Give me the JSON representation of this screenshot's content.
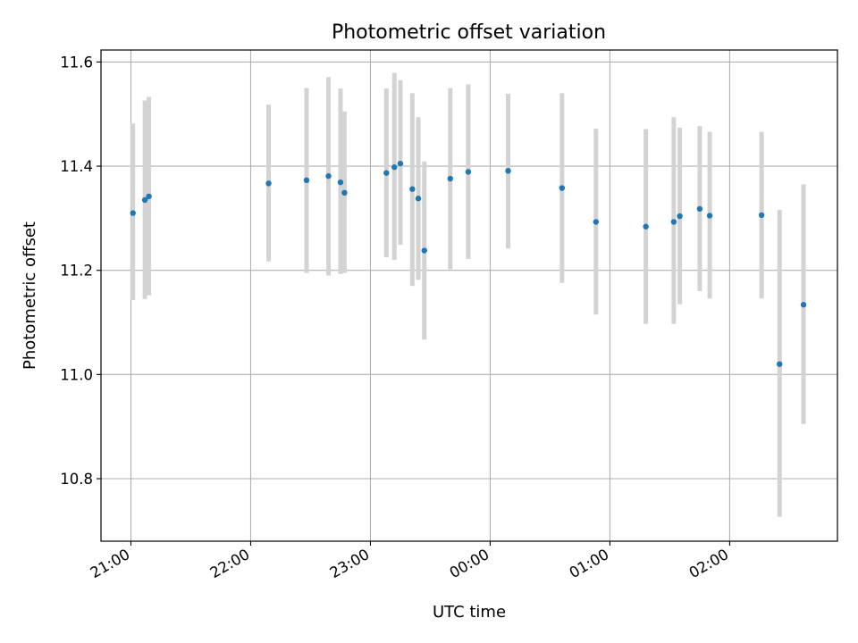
{
  "chart_data": {
    "type": "scatter",
    "title": "Photometric offset variation",
    "xlabel": "UTC time",
    "ylabel": "Photometric offset",
    "x_axis_kind": "time",
    "x_ticks": [
      "21:00",
      "22:00",
      "23:00",
      "00:00",
      "01:00",
      "02:00"
    ],
    "x_range_hours": [
      20.75,
      26.9
    ],
    "y_ticks": [
      10.8,
      11.0,
      11.2,
      11.4,
      11.6
    ],
    "ylim": [
      10.68,
      11.623
    ],
    "grid": true,
    "marker_color": "#1f77b4",
    "errorbar_color": "#d3d3d3",
    "series": [
      {
        "points": [
          {
            "time": "21:01",
            "y": 11.31,
            "low": 11.143,
            "high": 11.482
          },
          {
            "time": "21:07",
            "y": 11.335,
            "low": 11.145,
            "high": 11.526
          },
          {
            "time": "21:09",
            "y": 11.342,
            "low": 11.152,
            "high": 11.533
          },
          {
            "time": "22:09",
            "y": 11.367,
            "low": 11.217,
            "high": 11.518
          },
          {
            "time": "22:28",
            "y": 11.373,
            "low": 11.195,
            "high": 11.55
          },
          {
            "time": "22:39",
            "y": 11.381,
            "low": 11.19,
            "high": 11.571
          },
          {
            "time": "22:45",
            "y": 11.369,
            "low": 11.193,
            "high": 11.549
          },
          {
            "time": "22:47",
            "y": 11.349,
            "low": 11.195,
            "high": 11.505
          },
          {
            "time": "23:08",
            "y": 11.387,
            "low": 11.225,
            "high": 11.549
          },
          {
            "time": "23:12",
            "y": 11.398,
            "low": 11.22,
            "high": 11.579
          },
          {
            "time": "23:15",
            "y": 11.405,
            "low": 11.249,
            "high": 11.565
          },
          {
            "time": "23:21",
            "y": 11.356,
            "low": 11.17,
            "high": 11.54
          },
          {
            "time": "23:24",
            "y": 11.338,
            "low": 11.182,
            "high": 11.494
          },
          {
            "time": "23:27",
            "y": 11.238,
            "low": 11.067,
            "high": 11.409
          },
          {
            "time": "23:40",
            "y": 11.376,
            "low": 11.202,
            "high": 11.55
          },
          {
            "time": "23:49",
            "y": 11.389,
            "low": 11.222,
            "high": 11.557
          },
          {
            "time": "00:09",
            "y": 11.391,
            "low": 11.242,
            "high": 11.539
          },
          {
            "time": "00:36",
            "y": 11.358,
            "low": 11.176,
            "high": 11.54
          },
          {
            "time": "00:53",
            "y": 11.293,
            "low": 11.115,
            "high": 11.472
          },
          {
            "time": "01:18",
            "y": 11.284,
            "low": 11.097,
            "high": 11.471
          },
          {
            "time": "01:32",
            "y": 11.293,
            "low": 11.097,
            "high": 11.494
          },
          {
            "time": "01:35",
            "y": 11.304,
            "low": 11.135,
            "high": 11.474
          },
          {
            "time": "01:45",
            "y": 11.318,
            "low": 11.16,
            "high": 11.477
          },
          {
            "time": "01:50",
            "y": 11.305,
            "low": 11.146,
            "high": 11.466
          },
          {
            "time": "02:16",
            "y": 11.306,
            "low": 11.146,
            "high": 11.466
          },
          {
            "time": "02:25",
            "y": 11.02,
            "low": 10.727,
            "high": 11.316
          },
          {
            "time": "02:37",
            "y": 11.134,
            "low": 10.905,
            "high": 11.365
          }
        ]
      }
    ]
  }
}
